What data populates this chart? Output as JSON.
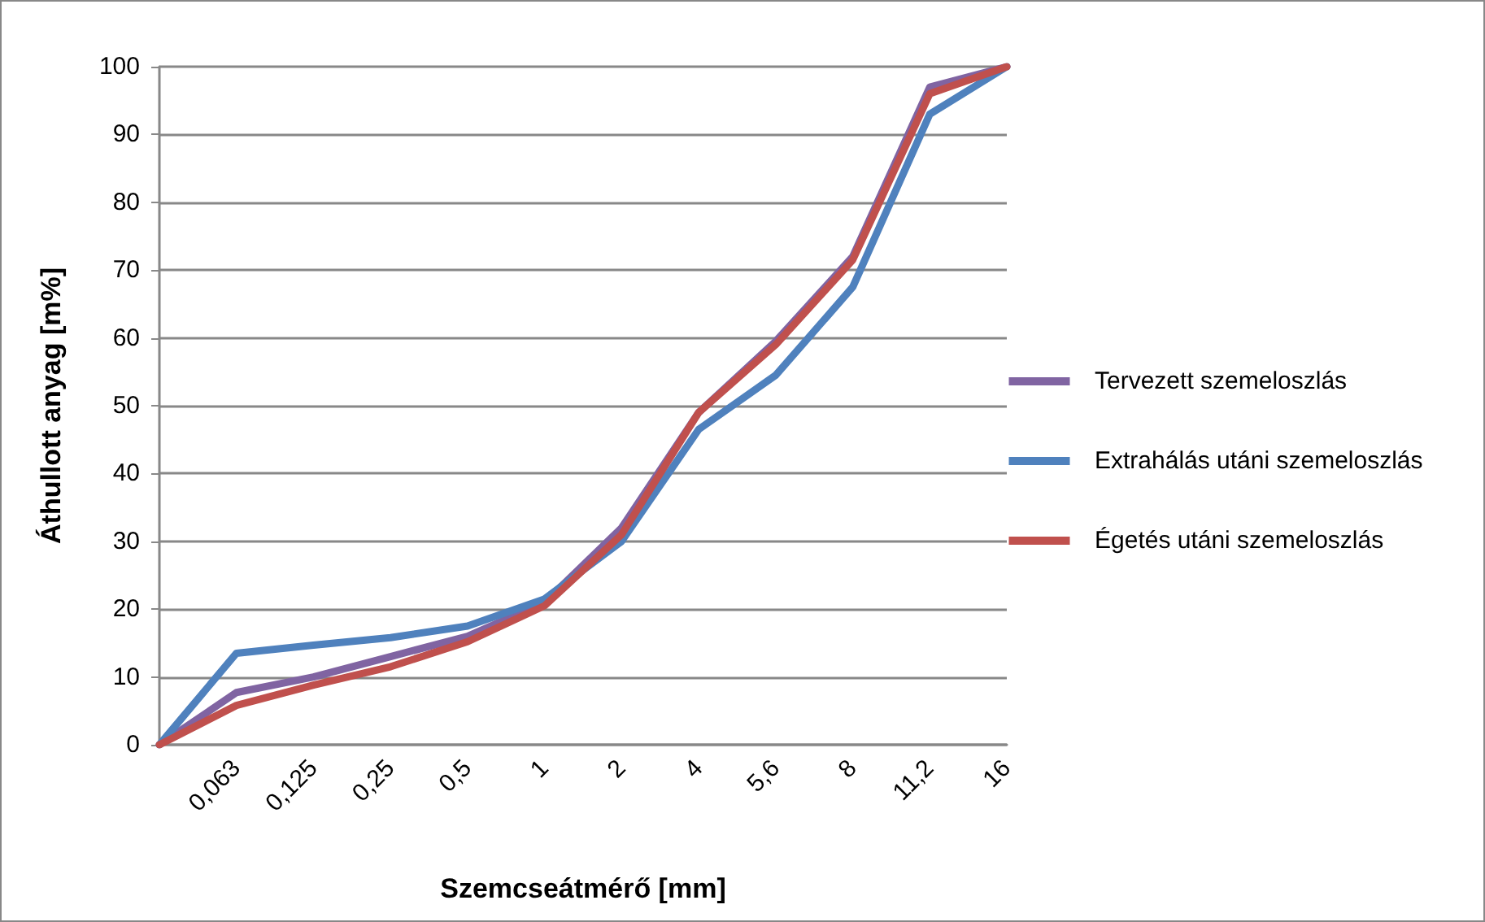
{
  "chart_data": {
    "type": "line",
    "xlabel": "Szemcseátmérő [mm]",
    "ylabel": "Áthullott anyag [m%]",
    "categories": [
      null,
      "0,063",
      "0,125",
      "0,25",
      "0,5",
      "1",
      "2",
      "4",
      "5,6",
      "8",
      "11,2",
      "16"
    ],
    "series": [
      {
        "name": "Tervezett szemeloszlás",
        "color": "#8064a2",
        "values": [
          0,
          7.7,
          10,
          13,
          16,
          21,
          32,
          49,
          59.5,
          72,
          97,
          100
        ]
      },
      {
        "name": "Extrahálás utáni szemeloszlás",
        "color": "#4f81bd",
        "values": [
          0,
          13.5,
          14.7,
          15.8,
          17.5,
          21.5,
          30,
          46.5,
          54.5,
          67.5,
          93,
          100
        ]
      },
      {
        "name": "Égetés utáni szemeloszlás",
        "color": "#c0504d",
        "values": [
          0,
          5.8,
          8.8,
          11.5,
          15.2,
          20.5,
          31,
          49,
          59,
          71.5,
          96,
          100
        ]
      }
    ],
    "ylim": [
      0,
      100
    ],
    "yticks": [
      0,
      10,
      20,
      30,
      40,
      50,
      60,
      70,
      80,
      90,
      100
    ],
    "grid": "y",
    "legend": "right",
    "marker": "none",
    "line_style": "solid"
  }
}
